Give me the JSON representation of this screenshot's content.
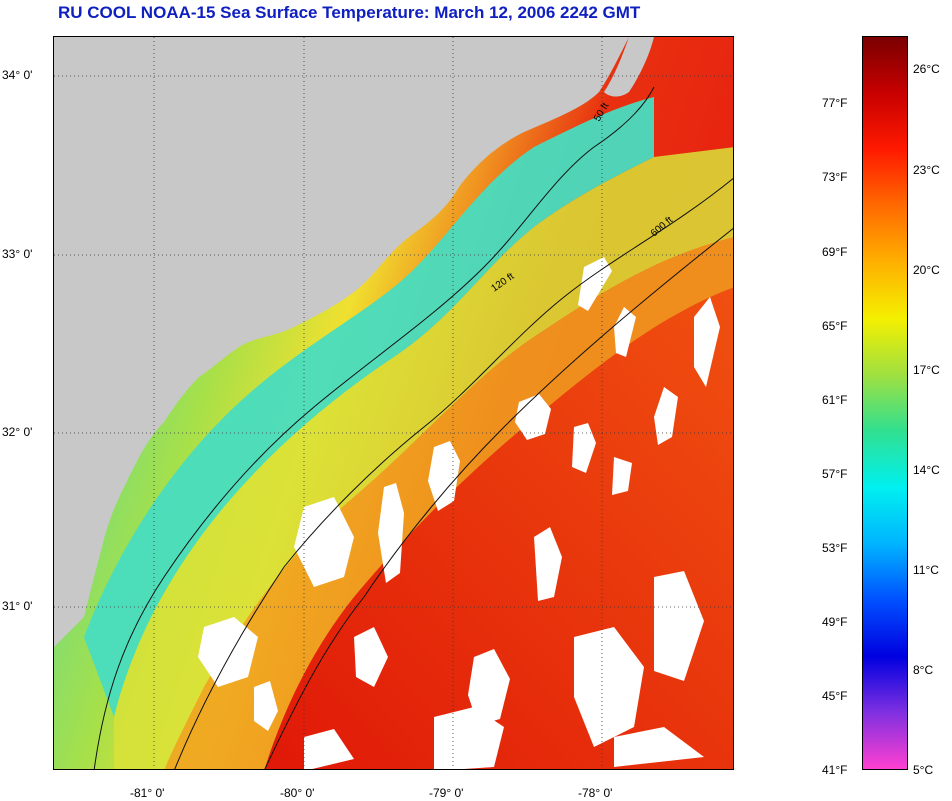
{
  "title": "RU COOL  NOAA-15  Sea Surface Temperature:  March 12, 2006 2242 GMT",
  "map": {
    "lat_labels": [
      "34° 0'",
      "33° 0'",
      "32° 0'",
      "31° 0'"
    ],
    "lon_labels": [
      "-81° 0'",
      "-80° 0'",
      "-79° 0'",
      "-78° 0'"
    ],
    "isobath_labels": [
      "50 ft",
      "120 ft",
      "600 ft"
    ],
    "colors": {
      "land": "#c8c8c8",
      "cloud": "#ffffff",
      "cold_shelf": "#3ce0c8",
      "mid_shelf": "#f0e030",
      "slope": "#f08020",
      "gulf_stream": "#e82010"
    }
  },
  "colorbar": {
    "fahrenheit_labels": [
      "77°F",
      "73°F",
      "69°F",
      "65°F",
      "61°F",
      "57°F",
      "53°F",
      "49°F",
      "45°F",
      "41°F"
    ],
    "celsius_labels": [
      "26°C",
      "23°C",
      "20°C",
      "17°C",
      "14°C",
      "11°C",
      "8°C",
      "5°C"
    ],
    "gradient_stops": [
      "#7a0000",
      "#c80000",
      "#ff1a00",
      "#ff6a00",
      "#ffb000",
      "#f4f000",
      "#a0e040",
      "#30e090",
      "#00f0f0",
      "#00b4ff",
      "#0050ff",
      "#0000e0",
      "#8030e0",
      "#ff40d0"
    ]
  }
}
